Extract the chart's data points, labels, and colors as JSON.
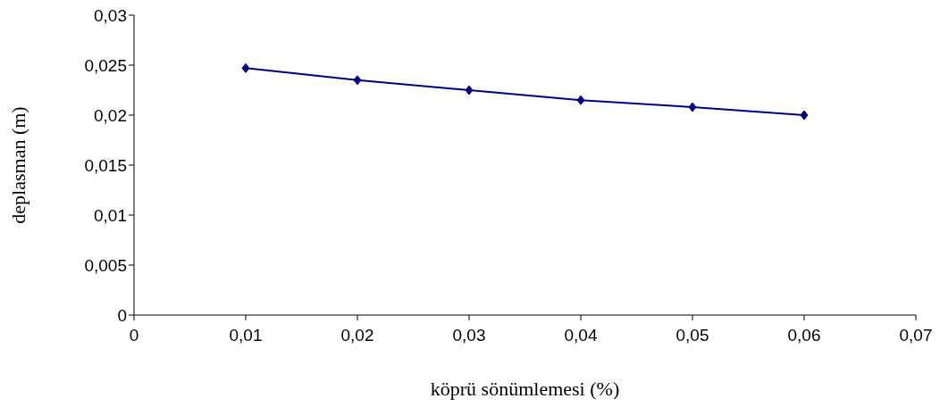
{
  "chart_data": {
    "type": "line",
    "xlabel": "köprü sönümlemesi (%)",
    "ylabel": "deplasman (m)",
    "x": [
      0.01,
      0.02,
      0.03,
      0.04,
      0.05,
      0.06
    ],
    "series": [
      {
        "color": "#000080",
        "values": [
          0.0247,
          0.0235,
          0.0225,
          0.0215,
          0.0208,
          0.02
        ]
      }
    ],
    "xlim": [
      0,
      0.07
    ],
    "xticks": [
      0,
      {
        "value": 0.01,
        "label": "0,01"
      },
      {
        "value": 0.02,
        "label": "0,02"
      },
      {
        "value": 0.03,
        "label": "0,03"
      },
      {
        "value": 0.04,
        "label": "0,04"
      },
      {
        "value": 0.05,
        "label": "0,05"
      },
      {
        "value": 0.06,
        "label": "0,06"
      },
      {
        "value": 0.07,
        "label": "0,07"
      }
    ],
    "ylim": [
      0,
      0.03
    ],
    "yticks": [
      0,
      {
        "value": 0.005,
        "label": "0,005"
      },
      {
        "value": 0.01,
        "label": "0,01"
      },
      {
        "value": 0.015,
        "label": "0,015"
      },
      {
        "value": 0.02,
        "label": "0,02"
      },
      {
        "value": 0.025,
        "label": "0,025"
      },
      {
        "value": 0.03,
        "label": "0,03"
      }
    ],
    "marker": "diamond",
    "line_style": "solid"
  }
}
